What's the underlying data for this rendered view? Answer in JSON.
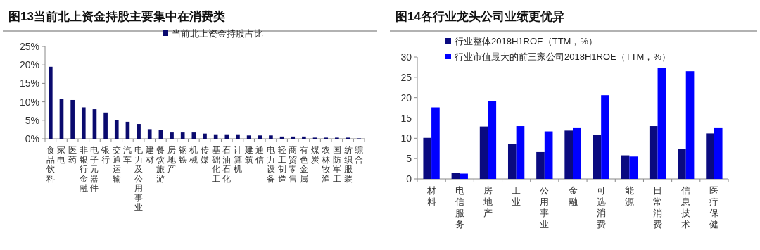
{
  "chart_data": [
    {
      "type": "bar",
      "title": "图13当前北上资金持股主要集中在消费类",
      "categories": [
        "食品饮料",
        "家电",
        "医药",
        "非银行金融",
        "电子元器件",
        "银行",
        "交通运输",
        "汽车",
        "电力及公用事业",
        "建材",
        "餐饮旅游",
        "房地产",
        "钢铁",
        "机械",
        "传媒",
        "基础化工",
        "石油石化",
        "计算机",
        "建筑",
        "通信",
        "电力设备",
        "轻工制造",
        "商贸零售",
        "有色金属",
        "煤炭",
        "农林牧渔",
        "国防军工",
        "纺织服装",
        "综合"
      ],
      "series": [
        {
          "name": "当前北上资金持股占比",
          "color": "#0a0a6e",
          "values": [
            19.5,
            10.8,
            10.5,
            8.5,
            8.0,
            7.1,
            5.1,
            4.6,
            4.0,
            2.6,
            2.3,
            1.7,
            1.7,
            1.7,
            1.4,
            1.2,
            1.2,
            1.2,
            0.9,
            0.9,
            0.9,
            0.6,
            0.6,
            0.6,
            0.3,
            0.3,
            0.3,
            0.3,
            0.1
          ]
        }
      ],
      "ylim": [
        0,
        25
      ],
      "yticks": [
        {
          "value": 0,
          "label": "0%"
        },
        {
          "value": 5,
          "label": "5%"
        },
        {
          "value": 10,
          "label": "10%"
        },
        {
          "value": 15,
          "label": "15%"
        },
        {
          "value": 20,
          "label": "20%"
        },
        {
          "value": 25,
          "label": "25%"
        }
      ],
      "legend": "top",
      "grid": false
    },
    {
      "type": "bar",
      "title": "图14各行业龙头公司业绩更优异",
      "categories": [
        "材料",
        "电信服务",
        "房地产",
        "工业",
        "公用事业",
        "金融",
        "可选消费",
        "能源",
        "日常消费",
        "信息技术",
        "医疗保健"
      ],
      "series": [
        {
          "name": "行业整体2018H1ROE（TTM，%）",
          "color": "#0a0a80",
          "values": [
            10.1,
            1.5,
            12.9,
            8.5,
            6.6,
            11.9,
            10.8,
            5.8,
            13.0,
            7.4,
            11.2
          ]
        },
        {
          "name": "行业市值最大的前三家公司2018H1ROE（TTM，%）",
          "color": "#0000ff",
          "values": [
            17.6,
            1.3,
            19.2,
            13.0,
            11.7,
            12.5,
            20.6,
            5.5,
            27.3,
            26.5,
            12.5
          ]
        }
      ],
      "ylim": [
        0,
        30
      ],
      "yticks": [
        0,
        5,
        10,
        15,
        20,
        25,
        30
      ],
      "legend": "top left",
      "grid": false
    }
  ]
}
